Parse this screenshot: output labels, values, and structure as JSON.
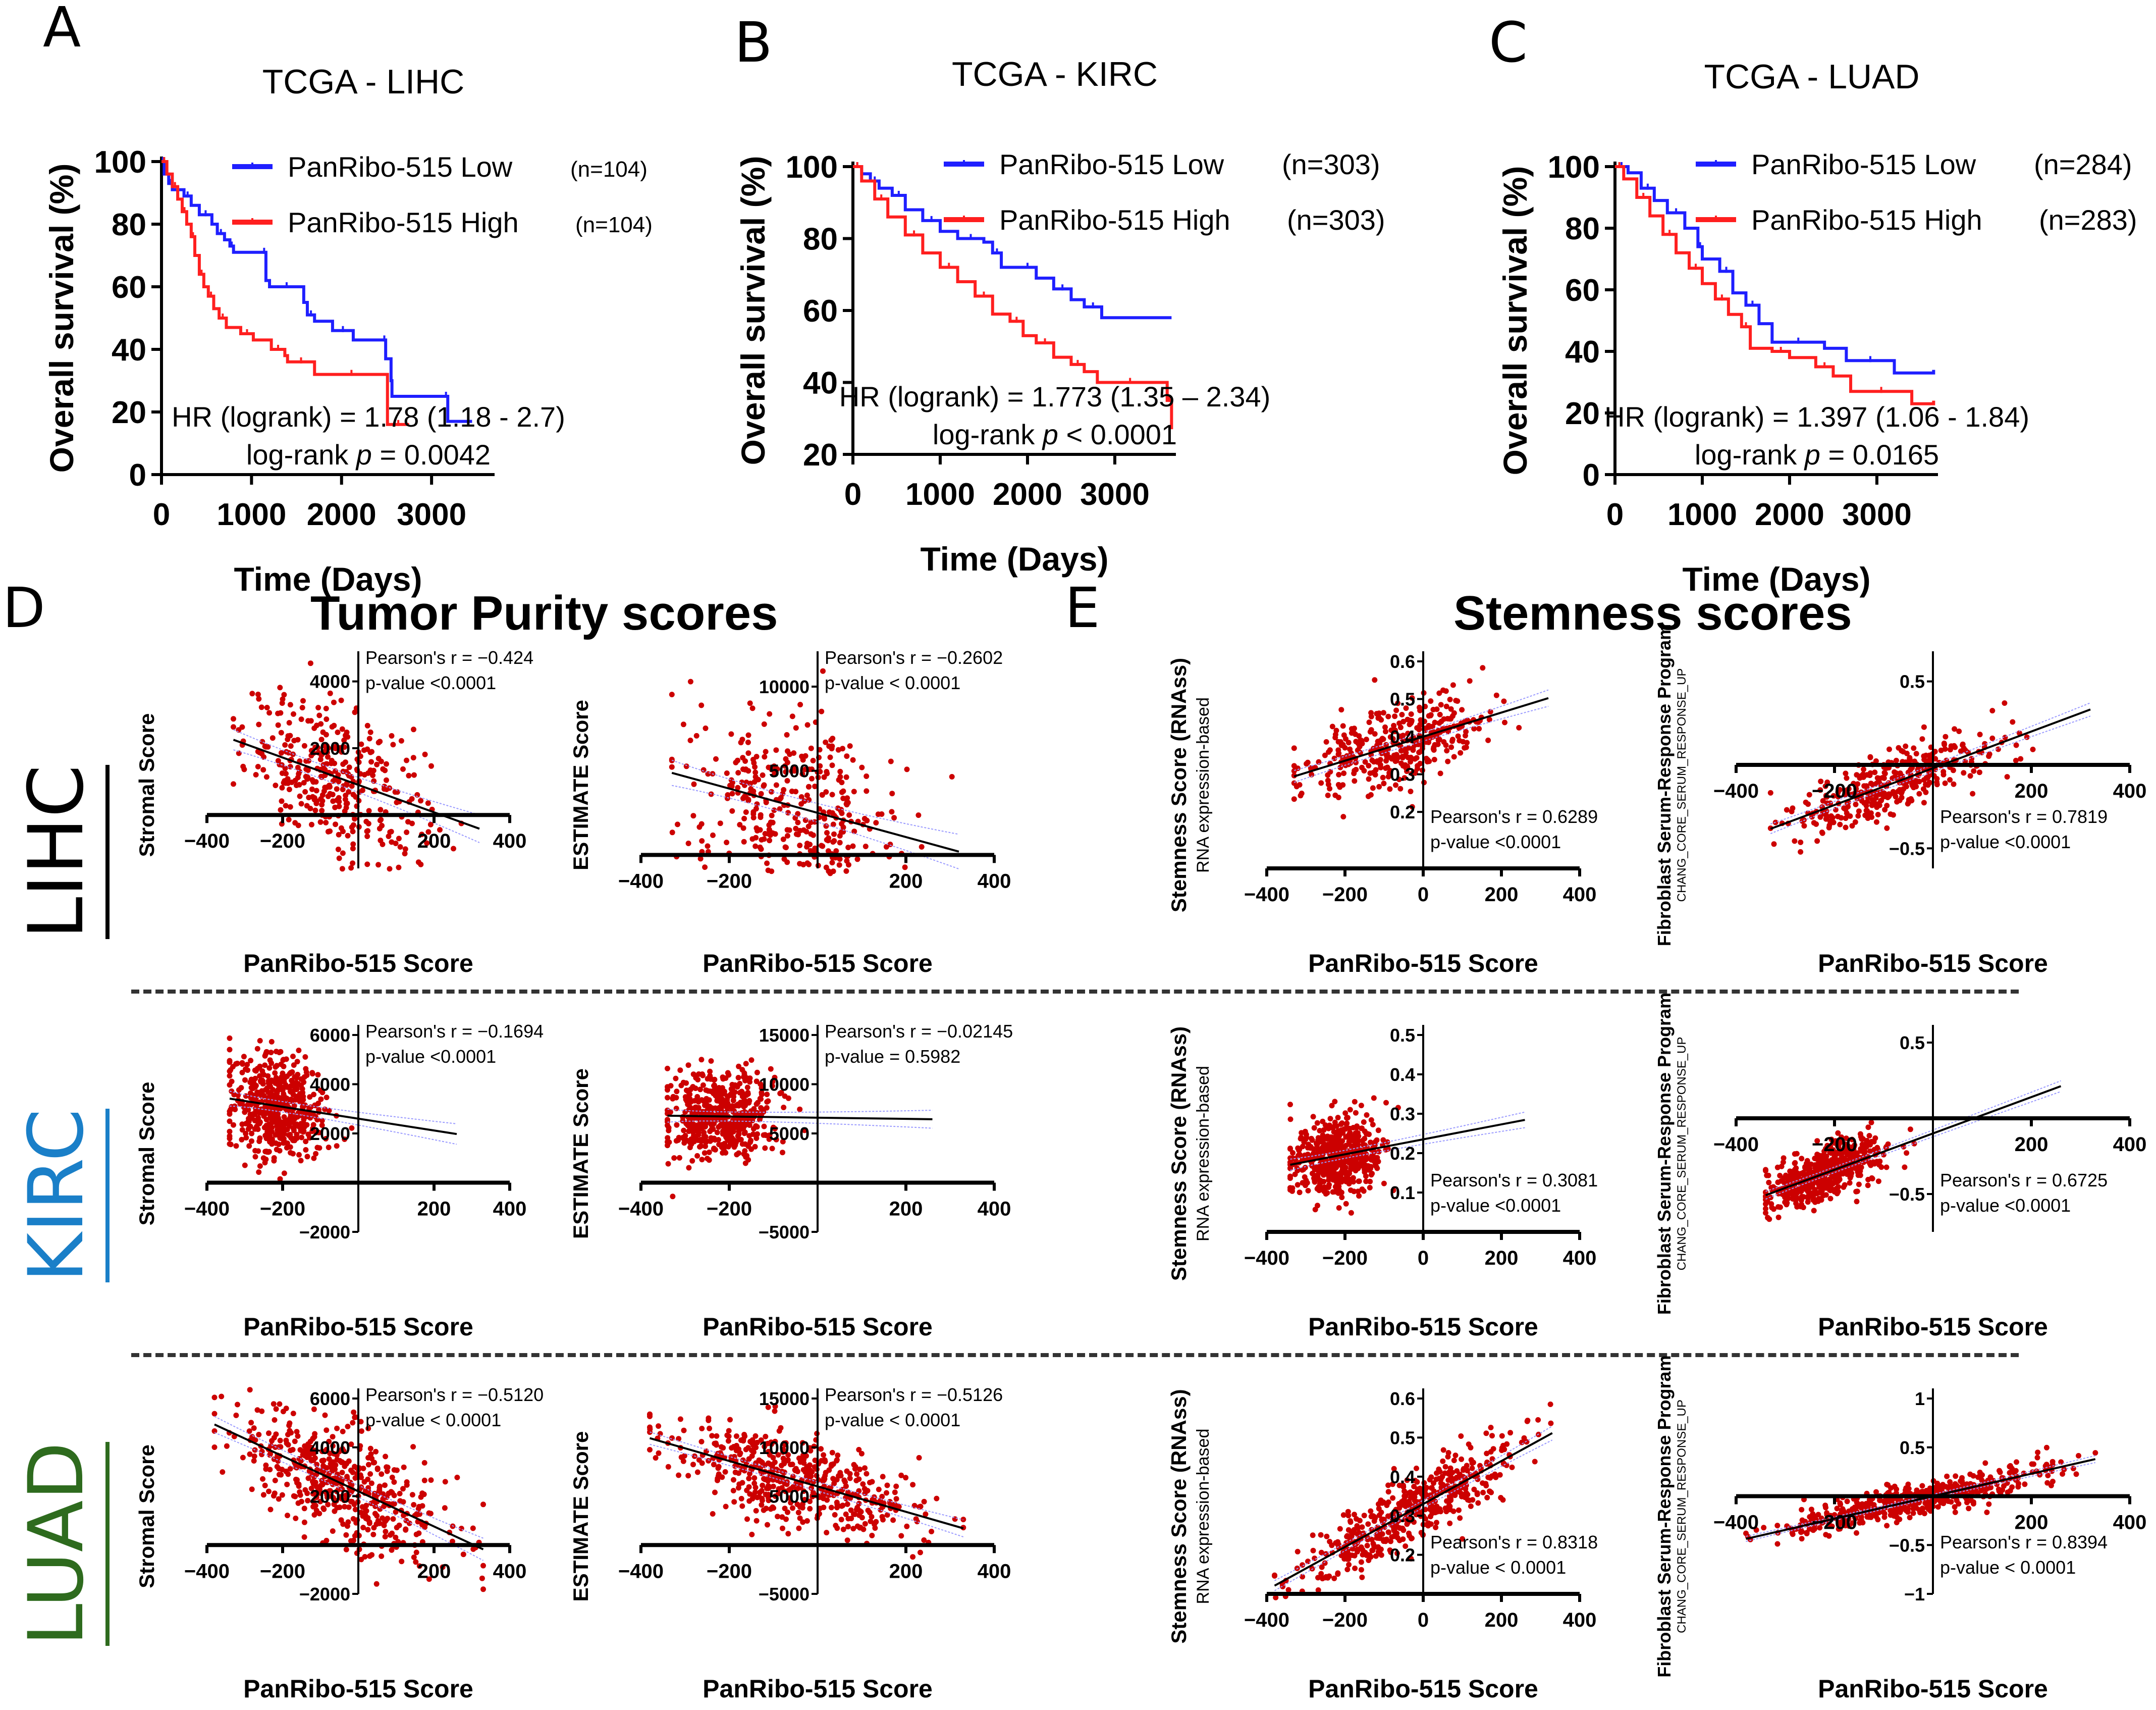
{
  "panels": {
    "A": "A",
    "B": "B",
    "C": "C",
    "D": "D",
    "E": "E"
  },
  "section_titles": {
    "purity": "Tumor Purity scores",
    "stemness": "Stemness scores"
  },
  "row_labels": [
    {
      "text": "LIHC",
      "color": "#000000"
    },
    {
      "text": "KIRC",
      "color": "#1a7fc8"
    },
    {
      "text": "LUAD",
      "color": "#2e6b1e"
    }
  ],
  "colors": {
    "low": "#1f1fff",
    "high": "#ff1f1f",
    "point": "#cc0000",
    "fit": "#000000",
    "ci": "#9a9aff"
  },
  "chart_data": [
    {
      "id": "km-lihc",
      "type": "line",
      "panel": "A",
      "title": "TCGA - LIHC",
      "xlabel": "Time (Days)",
      "ylabel": "Overall survival (%)",
      "xlim": [
        0,
        3700
      ],
      "ylim": [
        0,
        100
      ],
      "xticks": [
        0,
        1000,
        2000,
        3000
      ],
      "yticks": [
        0,
        20,
        40,
        60,
        80,
        100
      ],
      "legend": "top-right",
      "annotation": [
        "HR (logrank) = 1.78  (1.18 - 2.7)",
        "log-rank p = 0.0042"
      ],
      "series": [
        {
          "name": "PanRibo-515 Low",
          "n": "(n=104)",
          "color": "#1f1fff",
          "x": [
            0,
            30,
            80,
            120,
            250,
            330,
            420,
            560,
            620,
            700,
            760,
            800,
            1120,
            1160,
            1200,
            1580,
            1620,
            1700,
            1900,
            2130,
            2460,
            2490,
            2550,
            2560,
            3140,
            3180,
            3450
          ],
          "y": [
            100,
            96,
            93,
            91,
            89,
            86,
            83,
            80,
            77,
            75,
            73,
            71,
            71,
            62,
            60,
            55,
            51,
            49,
            46,
            43,
            43,
            37,
            30,
            25,
            25,
            17,
            17
          ]
        },
        {
          "name": "PanRibo-515 High",
          "n": "(n=104)",
          "color": "#ff1f1f",
          "x": [
            0,
            60,
            120,
            180,
            230,
            280,
            330,
            370,
            420,
            470,
            520,
            580,
            640,
            720,
            880,
            1020,
            1220,
            1370,
            1400,
            1700,
            1730,
            2490,
            2510,
            2750
          ],
          "y": [
            100,
            96,
            92,
            88,
            84,
            80,
            76,
            70,
            64,
            60,
            57,
            53,
            50,
            47,
            45,
            43,
            40,
            38,
            36,
            32,
            32,
            32,
            16,
            16
          ]
        }
      ]
    },
    {
      "id": "km-kirc",
      "type": "line",
      "panel": "B",
      "title": "TCGA - KIRC",
      "xlabel": "Time (Days)",
      "ylabel": "Overall survival (%)",
      "xlim": [
        0,
        3700
      ],
      "ylim": [
        20,
        100
      ],
      "xticks": [
        0,
        1000,
        2000,
        3000
      ],
      "yticks": [
        20,
        40,
        60,
        80,
        100
      ],
      "legend": "top-right",
      "annotation": [
        "HR (logrank) = 1.773  (1.35 – 2.34)",
        "log-rank p < 0.0001"
      ],
      "series": [
        {
          "name": "PanRibo-515 Low",
          "n": "(n=303)",
          "color": "#1f1fff",
          "x": [
            0,
            100,
            200,
            300,
            450,
            600,
            800,
            1000,
            1200,
            1500,
            1600,
            1700,
            1900,
            2100,
            2300,
            2500,
            2650,
            2850,
            3650
          ],
          "y": [
            100,
            98,
            96,
            94,
            92,
            88,
            85,
            82,
            80,
            79,
            76,
            72,
            72,
            69,
            66,
            63,
            61,
            58,
            58
          ]
        },
        {
          "name": "PanRibo-515 High",
          "n": "(n=303)",
          "color": "#ff1f1f",
          "x": [
            0,
            100,
            250,
            400,
            600,
            800,
            1000,
            1200,
            1400,
            1600,
            1800,
            1950,
            2100,
            2300,
            2500,
            2650,
            2800,
            3550,
            3600,
            3650
          ],
          "y": [
            100,
            96,
            91,
            86,
            81,
            76,
            72,
            68,
            64,
            59,
            57,
            53,
            51,
            47,
            45,
            43,
            40,
            40,
            35,
            27
          ]
        }
      ]
    },
    {
      "id": "km-luad",
      "type": "line",
      "panel": "C",
      "title": "TCGA - LUAD",
      "xlabel": "Time (Days)",
      "ylabel": "Overall survival (%)",
      "xlim": [
        0,
        3700
      ],
      "ylim": [
        0,
        100
      ],
      "xticks": [
        0,
        1000,
        2000,
        3000
      ],
      "yticks": [
        0,
        20,
        40,
        60,
        80,
        100
      ],
      "legend": "top-right",
      "annotation": [
        "HR (logrank) = 1.397 (1.06 - 1.84)",
        "log-rank p = 0.0165"
      ],
      "series": [
        {
          "name": "PanRibo-515 Low",
          "n": "(n=284)",
          "color": "#1f1fff",
          "x": [
            0,
            150,
            300,
            450,
            600,
            800,
            950,
            1000,
            1200,
            1350,
            1500,
            1650,
            1800,
            2400,
            2650,
            3200,
            3650
          ],
          "y": [
            100,
            98,
            93,
            89,
            85,
            80,
            74,
            70,
            66,
            59,
            55,
            49,
            43,
            41,
            37,
            33,
            34
          ]
        },
        {
          "name": "PanRibo-515 High",
          "n": "(n=283)",
          "color": "#ff1f1f",
          "x": [
            0,
            100,
            250,
            400,
            550,
            700,
            850,
            1000,
            1150,
            1300,
            1450,
            1550,
            1800,
            2000,
            2300,
            2500,
            2700,
            3400,
            3650
          ],
          "y": [
            100,
            96,
            90,
            84,
            78,
            72,
            67,
            62,
            57,
            52,
            48,
            41,
            40,
            38,
            35,
            32,
            27,
            23,
            24
          ]
        }
      ]
    },
    {
      "id": "sc-lihc-stromal",
      "type": "scatter",
      "panel": "D",
      "row": "LIHC",
      "xlabel": "PanRibo-515 Score",
      "ylabel": "Stromal Score",
      "ylabel2": "",
      "xlim": [
        -400,
        400
      ],
      "ylim": [
        -1600,
        4600
      ],
      "xticks": [
        -400,
        -200,
        200,
        400
      ],
      "yticks": [
        2000,
        4000
      ],
      "x_axis_at": 0,
      "pearson_r": "Pearson's r = −0.424",
      "p_value": "p-value <0.0001",
      "fit": {
        "intercept": 900,
        "slope": -4.1,
        "x_range": [
          -330,
          320
        ]
      },
      "n": 370,
      "x_mean": -60,
      "x_sd": 120,
      "y_sd": 1050
    },
    {
      "id": "sc-lihc-estimate",
      "type": "scatter",
      "panel": "D",
      "row": "LIHC",
      "xlabel": "PanRibo-515 Score",
      "ylabel": "ESTIMATE Score",
      "ylabel2": "",
      "xlim": [
        -400,
        400
      ],
      "ylim": [
        -800,
        11500
      ],
      "xticks": [
        -400,
        -200,
        200,
        400
      ],
      "yticks": [
        5000,
        10000
      ],
      "x_axis_at": 0,
      "pearson_r": "Pearson's r = −0.2602",
      "p_value": "p-value < 0.0001",
      "fit": {
        "intercept": 2500,
        "slope": -7.2,
        "x_range": [
          -330,
          320
        ]
      },
      "n": 370,
      "x_mean": -60,
      "x_sd": 120,
      "y_sd": 2600
    },
    {
      "id": "sc-lihc-stemness",
      "type": "scatter",
      "panel": "E",
      "row": "LIHC",
      "xlabel": "PanRibo-515 Score",
      "ylabel": "Stemness Score (RNAss)",
      "ylabel2": "RNA expression-based",
      "xlim": [
        -400,
        400
      ],
      "ylim": [
        0.05,
        0.6
      ],
      "xticks": [
        -400,
        -200,
        0,
        200,
        400
      ],
      "yticks": [
        0.2,
        0.3,
        0.4,
        0.5,
        0.6
      ],
      "x_axis_at": 0.05,
      "pearson_r": "Pearson's r = 0.6289",
      "p_value": "p-value <0.0001",
      "fit": {
        "intercept": 0.4,
        "slope": 0.00032,
        "x_range": [
          -330,
          320
        ]
      },
      "n": 370,
      "x_mean": -60,
      "x_sd": 120,
      "y_sd": 0.055
    },
    {
      "id": "sc-lihc-fibroblast",
      "type": "scatter",
      "panel": "E",
      "row": "LIHC",
      "xlabel": "PanRibo-515 Score",
      "ylabel": "Fibroblast Serum-Response Program",
      "ylabel2": "CHANG_CORE_SERUM_RESPONSE_UP",
      "xlim": [
        -400,
        400
      ],
      "ylim": [
        -0.62,
        0.62
      ],
      "xticks": [
        -400,
        -200,
        200,
        400
      ],
      "yticks": [
        -0.5,
        0.5
      ],
      "x_axis_at": 0,
      "pearson_r": "Pearson's r = 0.7819",
      "p_value": "p-value <0.0001",
      "fit": {
        "intercept": -0.02,
        "slope": 0.0011,
        "x_range": [
          -330,
          320
        ]
      },
      "n": 370,
      "x_mean": -80,
      "x_sd": 110,
      "y_sd": 0.1
    },
    {
      "id": "sc-kirc-stromal",
      "type": "scatter",
      "panel": "D",
      "row": "KIRC",
      "xlabel": "PanRibo-515 Score",
      "ylabel": "Stromal Score",
      "ylabel2": "",
      "xlim": [
        -400,
        400
      ],
      "ylim": [
        -2000,
        6000
      ],
      "xticks": [
        -400,
        -200,
        200,
        400
      ],
      "yticks": [
        -2000,
        2000,
        4000,
        6000
      ],
      "x_axis_at": 0,
      "pearson_r": "Pearson's r = −0.1694",
      "p_value": "p-value <0.0001",
      "fit": {
        "intercept": 2600,
        "slope": -2.4,
        "x_range": [
          -340,
          260
        ]
      },
      "n": 530,
      "x_mean": -220,
      "x_sd": 60,
      "y_sd": 1050
    },
    {
      "id": "sc-kirc-estimate",
      "type": "scatter",
      "panel": "D",
      "row": "KIRC",
      "xlabel": "PanRibo-515 Score",
      "ylabel": "ESTIMATE Score",
      "ylabel2": "",
      "xlim": [
        -400,
        400
      ],
      "ylim": [
        -5000,
        15000
      ],
      "xticks": [
        -400,
        -200,
        200,
        400
      ],
      "yticks": [
        -5000,
        5000,
        10000,
        15000
      ],
      "x_axis_at": 0,
      "pearson_r": "Pearson's r = −0.02145",
      "p_value": "p-value = 0.5982",
      "fit": {
        "intercept": 6600,
        "slope": -0.6,
        "x_range": [
          -340,
          260
        ]
      },
      "n": 530,
      "x_mean": -220,
      "x_sd": 60,
      "y_sd": 2300
    },
    {
      "id": "sc-kirc-stemness",
      "type": "scatter",
      "panel": "E",
      "row": "KIRC",
      "xlabel": "PanRibo-515 Score",
      "ylabel": "Stemness Score (RNAss)",
      "ylabel2": "RNA expression-based",
      "xlim": [
        -400,
        400
      ],
      "ylim": [
        0.0,
        0.5
      ],
      "xticks": [
        -400,
        -200,
        0,
        200,
        400
      ],
      "yticks": [
        0.1,
        0.2,
        0.3,
        0.4,
        0.5
      ],
      "x_axis_at": 0.0,
      "pearson_r": "Pearson's r = 0.3081",
      "p_value": "p-value <0.0001",
      "fit": {
        "intercept": 0.235,
        "slope": 0.00019,
        "x_range": [
          -340,
          260
        ]
      },
      "n": 530,
      "x_mean": -220,
      "x_sd": 60,
      "y_sd": 0.05
    },
    {
      "id": "sc-kirc-fibroblast",
      "type": "scatter",
      "panel": "E",
      "row": "KIRC",
      "xlabel": "PanRibo-515 Score",
      "ylabel": "Fibroblast Serum-Response Program",
      "ylabel2": "CHANG_CORE_SERUM_RESPONSE_UP",
      "xlim": [
        -400,
        400
      ],
      "ylim": [
        -0.75,
        0.55
      ],
      "xticks": [
        -400,
        -200,
        200,
        400
      ],
      "yticks": [
        -0.5,
        0.5
      ],
      "x_axis_at": 0,
      "pearson_r": "Pearson's r = 0.6725",
      "p_value": "p-value <0.0001",
      "fit": {
        "intercept": -0.1,
        "slope": 0.0012,
        "x_range": [
          -340,
          260
        ]
      },
      "n": 530,
      "x_mean": -220,
      "x_sd": 60,
      "y_sd": 0.09
    },
    {
      "id": "sc-luad-stromal",
      "type": "scatter",
      "panel": "D",
      "row": "LUAD",
      "xlabel": "PanRibo-515 Score",
      "ylabel": "Stromal Score",
      "ylabel2": "",
      "xlim": [
        -400,
        400
      ],
      "ylim": [
        -2000,
        6000
      ],
      "xticks": [
        -400,
        -200,
        200,
        400
      ],
      "yticks": [
        -2000,
        2000,
        4000,
        6000
      ],
      "x_axis_at": 0,
      "pearson_r": "Pearson's r = −0.5120",
      "p_value": "p-value < 0.0001",
      "fit": {
        "intercept": 2200,
        "slope": -7.2,
        "x_range": [
          -380,
          330
        ]
      },
      "n": 500,
      "x_mean": -40,
      "x_sd": 140,
      "y_sd": 1150
    },
    {
      "id": "sc-luad-estimate",
      "type": "scatter",
      "panel": "D",
      "row": "LUAD",
      "xlabel": "PanRibo-515 Score",
      "ylabel": "ESTIMATE Score",
      "ylabel2": "",
      "xlim": [
        -400,
        400
      ],
      "ylim": [
        -5000,
        15000
      ],
      "xticks": [
        -400,
        -200,
        200,
        400
      ],
      "yticks": [
        -5000,
        5000,
        10000,
        15000
      ],
      "x_axis_at": 0,
      "pearson_r": "Pearson's r = −0.5126",
      "p_value": "p-value < 0.0001",
      "fit": {
        "intercept": 6000,
        "slope": -13,
        "x_range": [
          -380,
          330
        ]
      },
      "n": 500,
      "x_mean": -40,
      "x_sd": 140,
      "y_sd": 2200
    },
    {
      "id": "sc-luad-stemness",
      "type": "scatter",
      "panel": "E",
      "row": "LUAD",
      "xlabel": "PanRibo-515 Score",
      "ylabel": "Stemness Score (RNAss)",
      "ylabel2": "RNA expression-based",
      "xlim": [
        -400,
        400
      ],
      "ylim": [
        0.1,
        0.6
      ],
      "xticks": [
        -400,
        -200,
        0,
        200,
        400
      ],
      "yticks": [
        0.2,
        0.3,
        0.4,
        0.5,
        0.6
      ],
      "x_axis_at": 0.1,
      "pearson_r": "Pearson's r = 0.8318",
      "p_value": "p-value < 0.0001",
      "fit": {
        "intercept": 0.33,
        "slope": 0.00055,
        "x_range": [
          -380,
          330
        ]
      },
      "n": 500,
      "x_mean": -40,
      "x_sd": 140,
      "y_sd": 0.045
    },
    {
      "id": "sc-luad-fibroblast",
      "type": "scatter",
      "panel": "E",
      "row": "LUAD",
      "xlabel": "PanRibo-515 Score",
      "ylabel": "Fibroblast Serum-Response Program",
      "ylabel2": "CHANG_CORE_SERUM_RESPONSE_UP",
      "xlim": [
        -400,
        400
      ],
      "ylim": [
        -1.0,
        1.0
      ],
      "xticks": [
        -400,
        -200,
        200,
        400
      ],
      "yticks": [
        -1.0,
        -0.5,
        0.5,
        1.0
      ],
      "x_axis_at": 0,
      "pearson_r": "Pearson's r = 0.8394",
      "p_value": "p-value < 0.0001",
      "fit": {
        "intercept": 0.0,
        "slope": 0.00115,
        "x_range": [
          -380,
          330
        ]
      },
      "n": 500,
      "x_mean": -40,
      "x_sd": 140,
      "y_sd": 0.09
    }
  ]
}
